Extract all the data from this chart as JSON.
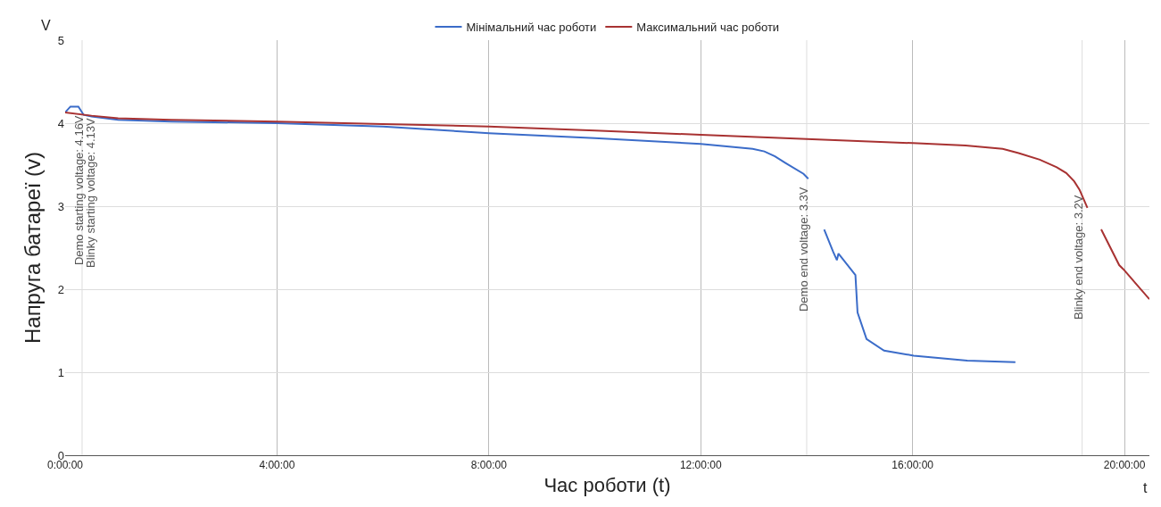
{
  "chart_data": {
    "type": "line",
    "xlabel": "Час роботи (t)",
    "ylabel": "Напруга батареї (v)",
    "annotations": [
      "V",
      "t",
      {
        "text": "Demo starting voltage: 4.16V",
        "x": 0.32,
        "y": 4.16
      },
      {
        "text": "Blinky starting voltage: 4.13V",
        "x": 0.32,
        "y": 4.13
      },
      {
        "text": "Demo end voltage: 3.3V",
        "x": 14.0,
        "y": 3.3
      },
      {
        "text": "Blinky end voltage: 3.2V",
        "x": 19.2,
        "y": 3.2
      }
    ],
    "series": [
      {
        "name": "Мінімальний час роботи",
        "color": "#3b6cc9",
        "x": [
          0,
          0.1,
          0.25,
          0.35,
          0.5,
          1,
          2,
          4,
          6,
          8,
          10,
          12,
          12.98,
          13.2,
          13.4,
          13.6,
          13.94,
          14.03,
          14.1,
          14.33,
          14.5,
          14.57,
          14.6,
          14.92,
          14.96,
          15.13,
          15.46,
          16.02,
          17.03,
          17.94
        ],
        "values": [
          4.13,
          4.2,
          4.2,
          4.1,
          4.08,
          4.04,
          4.02,
          4.0,
          3.96,
          3.88,
          3.82,
          3.75,
          3.69,
          3.66,
          3.6,
          3.52,
          3.39,
          3.33,
          null,
          2.72,
          2.45,
          2.35,
          2.43,
          2.17,
          1.72,
          1.4,
          1.26,
          1.2,
          1.14,
          1.12
        ]
      },
      {
        "name": "Максимальний час роботи",
        "color": "#a83232",
        "x": [
          0,
          0.5,
          1,
          2,
          4,
          6,
          8,
          10,
          12,
          14,
          16,
          17.0,
          17.7,
          18.0,
          18.4,
          18.72,
          18.9,
          19.05,
          19.15,
          19.3,
          19.4,
          19.56,
          19.9,
          19.98,
          20.47
        ],
        "values": [
          4.13,
          4.09,
          4.06,
          4.04,
          4.02,
          3.99,
          3.96,
          3.91,
          3.86,
          3.81,
          3.76,
          3.73,
          3.69,
          3.64,
          3.56,
          3.47,
          3.4,
          3.3,
          3.2,
          2.98,
          null,
          2.72,
          2.29,
          2.24,
          1.88
        ]
      }
    ],
    "xlim": [
      0,
      20.47
    ],
    "xticks": [
      {
        "value": 0,
        "label": "0:00:00"
      },
      {
        "value": 4,
        "label": "4:00:00"
      },
      {
        "value": 8,
        "label": "8:00:00"
      },
      {
        "value": 12,
        "label": "12:00:00"
      },
      {
        "value": 16,
        "label": "16:00:00"
      },
      {
        "value": 20,
        "label": "20:00:00"
      }
    ],
    "ylim": [
      0,
      5
    ],
    "yticks": [
      0,
      1,
      2,
      3,
      4,
      5
    ],
    "ref_lines": [
      {
        "axis": "x",
        "value": 0.32,
        "color": "#dddddd"
      },
      {
        "axis": "x",
        "value": 14.0,
        "color": "#dddddd"
      },
      {
        "axis": "x",
        "value": 19.2,
        "color": "#dddddd"
      }
    ],
    "grid": true,
    "legend": "top",
    "marker": "none",
    "line_style": "solid"
  }
}
